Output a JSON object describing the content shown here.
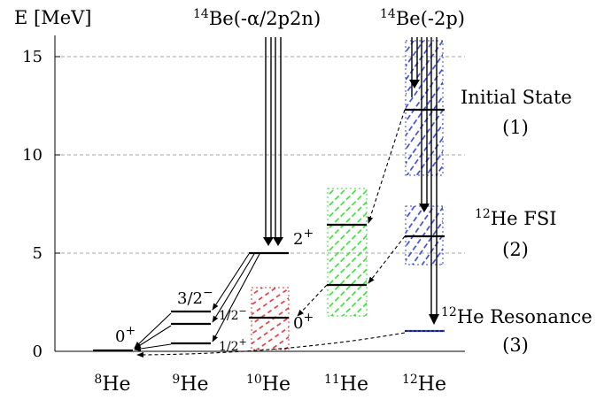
{
  "y_axis_label": "E [MeV]",
  "y_ticks": [
    "0",
    "5",
    "10",
    "15"
  ],
  "nuclei": [
    {
      "mass": "8",
      "symbol": "He"
    },
    {
      "mass": "9",
      "symbol": "He"
    },
    {
      "mass": "10",
      "symbol": "He"
    },
    {
      "mass": "11",
      "symbol": "He"
    },
    {
      "mass": "12",
      "symbol": "He"
    }
  ],
  "reactions": {
    "alpha": {
      "mass": "14",
      "symbol": "Be",
      "channel": "(-α/2p2n)"
    },
    "two_p": {
      "mass": "14",
      "symbol": "Be",
      "channel": "(-2p)"
    }
  },
  "spin_labels": {
    "he8_gs": "0",
    "he8_gs_parity": "+",
    "he9_32": "3/2",
    "he9_32_parity": "−",
    "he9_12m": "1/2",
    "he9_12m_parity": "−",
    "he9_12p": "1/2",
    "he9_12p_parity": "+",
    "he10_2p": "2",
    "he10_2p_parity": "+",
    "he10_gs": "0",
    "he10_gs_parity": "+"
  },
  "annotations": {
    "initial_line1": "Initial State",
    "initial_line2": "(1)",
    "fsi_mass": "12",
    "fsi_text": "He FSI",
    "fsi_line2": "(2)",
    "res_mass": "12",
    "res_text": "He Resonance",
    "res_line2": "(3)"
  },
  "colors": {
    "he10_band": "#e53030",
    "he11_band": "#33dd33",
    "he12_band": "#3344dd",
    "gridline": "#888888",
    "line": "#000000"
  }
}
